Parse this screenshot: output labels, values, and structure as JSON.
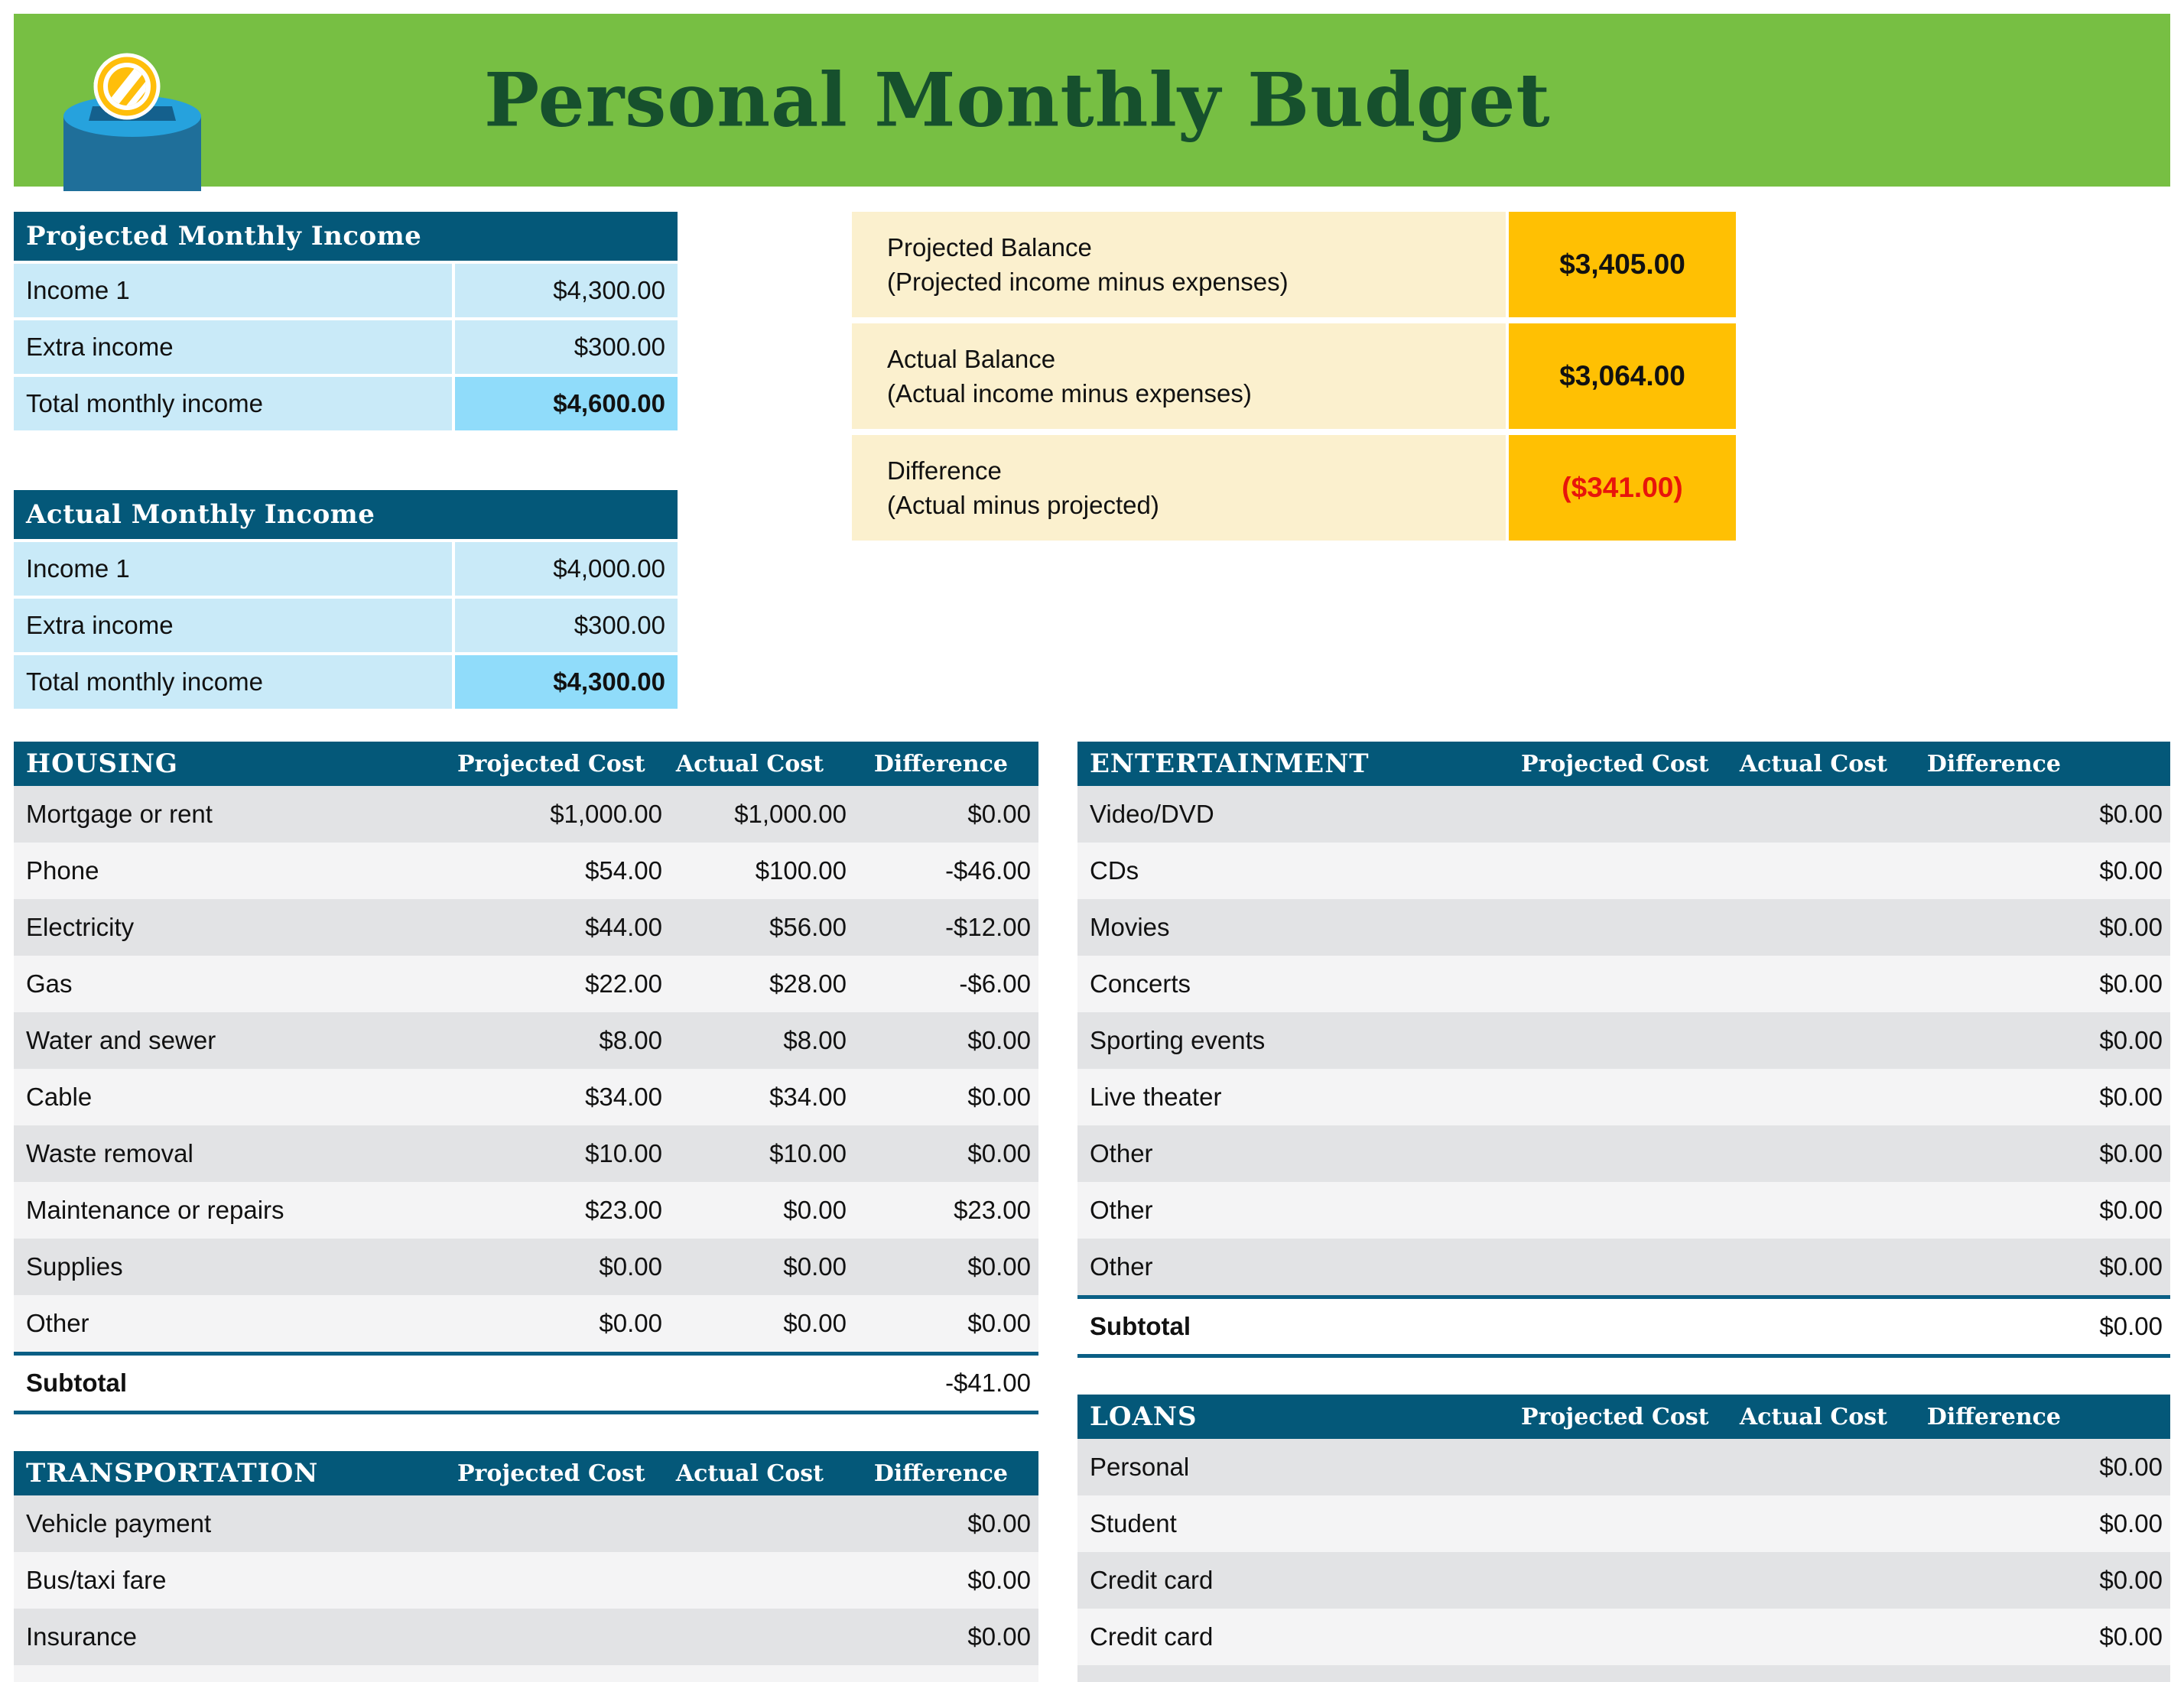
{
  "header": {
    "title": "Personal Monthly Budget",
    "icon": "money-box-coin-icon"
  },
  "colors": {
    "banner_green": "#77BF43",
    "title_green": "#16502D",
    "table_header_teal": "#045879",
    "income_cell_blue": "#C9EAF8",
    "income_total_blue": "#90DCFA",
    "balance_label_cream": "#FBF0CE",
    "balance_value_orange": "#FFC003",
    "negative_red": "#E8150B",
    "row_gray": "#E2E3E5",
    "row_light": "#F4F4F5",
    "subtotal_border_teal": "#0A5F85"
  },
  "income_tables": [
    {
      "title": "Projected Monthly Income",
      "rows": [
        {
          "label": "Income 1",
          "value": "$4,300.00",
          "total": false
        },
        {
          "label": "Extra income",
          "value": "$300.00",
          "total": false
        },
        {
          "label": "Total monthly income",
          "value": "$4,600.00",
          "total": true
        }
      ]
    },
    {
      "title": "Actual Monthly Income",
      "rows": [
        {
          "label": "Income 1",
          "value": "$4,000.00",
          "total": false
        },
        {
          "label": "Extra income",
          "value": "$300.00",
          "total": false
        },
        {
          "label": "Total monthly income",
          "value": "$4,300.00",
          "total": true
        }
      ]
    }
  ],
  "balance_rows": [
    {
      "label": "Projected Balance",
      "sublabel": "(Projected income minus expenses)",
      "value": "$3,405.00",
      "negative": false
    },
    {
      "label": "Actual Balance",
      "sublabel": "(Actual income minus expenses)",
      "value": "$3,064.00",
      "negative": false
    },
    {
      "label": "Difference",
      "sublabel": "(Actual minus projected)",
      "value": "($341.00)",
      "negative": true
    }
  ],
  "expense_columns": [
    "Projected Cost",
    "Actual Cost",
    "Difference"
  ],
  "expense_tables": [
    {
      "id": "housing",
      "title": "HOUSING",
      "rows": [
        [
          "Mortgage or rent",
          "$1,000.00",
          "$1,000.00",
          "$0.00"
        ],
        [
          "Phone",
          "$54.00",
          "$100.00",
          "-$46.00"
        ],
        [
          "Electricity",
          "$44.00",
          "$56.00",
          "-$12.00"
        ],
        [
          "Gas",
          "$22.00",
          "$28.00",
          "-$6.00"
        ],
        [
          "Water and sewer",
          "$8.00",
          "$8.00",
          "$0.00"
        ],
        [
          "Cable",
          "$34.00",
          "$34.00",
          "$0.00"
        ],
        [
          "Waste removal",
          "$10.00",
          "$10.00",
          "$0.00"
        ],
        [
          "Maintenance or repairs",
          "$23.00",
          "$0.00",
          "$23.00"
        ],
        [
          "Supplies",
          "$0.00",
          "$0.00",
          "$0.00"
        ],
        [
          "Other",
          "$0.00",
          "$0.00",
          "$0.00"
        ]
      ],
      "subtotal": {
        "label": "Subtotal",
        "value": "-$41.00"
      }
    },
    {
      "id": "entertainment",
      "title": "ENTERTAINMENT",
      "rows": [
        [
          "Video/DVD",
          "",
          "",
          "$0.00"
        ],
        [
          "CDs",
          "",
          "",
          "$0.00"
        ],
        [
          "Movies",
          "",
          "",
          "$0.00"
        ],
        [
          "Concerts",
          "",
          "",
          "$0.00"
        ],
        [
          "Sporting events",
          "",
          "",
          "$0.00"
        ],
        [
          "Live theater",
          "",
          "",
          "$0.00"
        ],
        [
          "Other",
          "",
          "",
          "$0.00"
        ],
        [
          "Other",
          "",
          "",
          "$0.00"
        ],
        [
          "Other",
          "",
          "",
          "$0.00"
        ]
      ],
      "subtotal": {
        "label": "Subtotal",
        "value": "$0.00"
      }
    },
    {
      "id": "transportation",
      "title": "TRANSPORTATION",
      "rows": [
        [
          "Vehicle payment",
          "",
          "",
          "$0.00"
        ],
        [
          "Bus/taxi fare",
          "",
          "",
          "$0.00"
        ],
        [
          "Insurance",
          "",
          "",
          "$0.00"
        ],
        [
          "",
          "",
          "",
          ""
        ]
      ]
    },
    {
      "id": "loans",
      "title": "LOANS",
      "rows": [
        [
          "Personal",
          "",
          "",
          "$0.00"
        ],
        [
          "Student",
          "",
          "",
          "$0.00"
        ],
        [
          "Credit card",
          "",
          "",
          "$0.00"
        ],
        [
          "Credit card",
          "",
          "",
          "$0.00"
        ],
        [
          "",
          "",
          "",
          ""
        ]
      ]
    }
  ]
}
